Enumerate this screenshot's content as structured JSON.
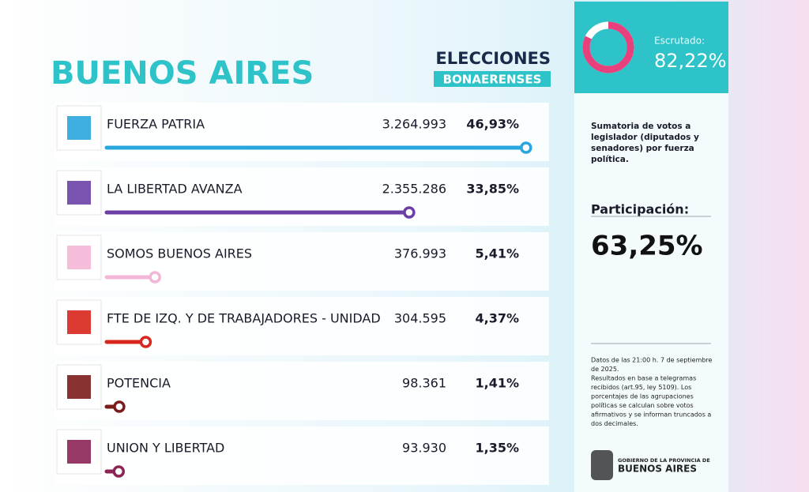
{
  "chart_data": {
    "type": "bar",
    "title": "BUENOS AIRES",
    "categories": [
      "FUERZA PATRIA",
      "LA LIBERTAD AVANZA",
      "SOMOS BUENOS AIRES",
      "FTE DE IZQ. Y DE TRABAJADORES - UNIDAD",
      "POTENCIA",
      "UNION Y LIBERTAD"
    ],
    "votes": [
      "3.264.993",
      "2.355.286",
      "376.993",
      "304.595",
      "98.361",
      "93.930"
    ],
    "values": [
      46.93,
      33.85,
      5.41,
      4.37,
      1.41,
      1.35
    ],
    "value_labels": [
      "46,93%",
      "33,85%",
      "5,41%",
      "4,37%",
      "1,41%",
      "1,35%"
    ],
    "colors": [
      "#2aa6de",
      "#6c3fa6",
      "#f4b6d6",
      "#d8261e",
      "#7b1c1c",
      "#8c2455"
    ],
    "xlim": [
      0,
      47.3
    ]
  },
  "header": {
    "line1": "ELECCIONES",
    "line2": "BONAERENSES"
  },
  "scrutiny": {
    "label": "Escrutado:",
    "value": 82.22,
    "value_label": "82,22%",
    "color": "#e8407c"
  },
  "sidebar": {
    "description": [
      "Sumatoria de votos a",
      "legislador (diputados y",
      "senadores) por fuerza",
      "política."
    ],
    "participation_label": "Participación:",
    "participation": "63,25%",
    "footnote": [
      "Datos de las 21:00 h. 7 de septiembre",
      "de 2025.",
      "Resultados en base a telegramas",
      "recibidos (art.95, ley 5109). Los",
      "porcentajes de las agrupaciones",
      "políticas se calculan sobre votos",
      "afirmativos y se informan truncados a",
      "dos decimales."
    ],
    "logo_top": "GOBIERNO DE LA PROVINCIA DE",
    "logo_bottom": "BUENOS AIRES"
  }
}
